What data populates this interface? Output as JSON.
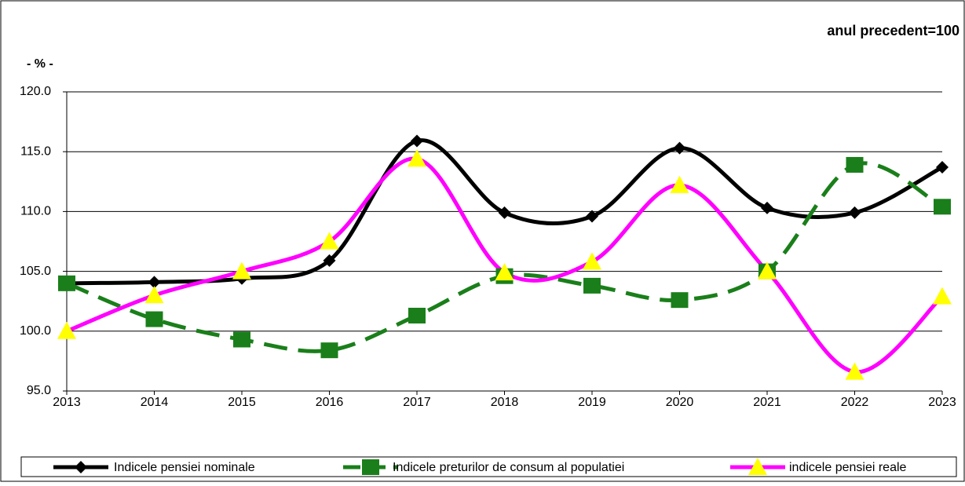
{
  "chart_data": {
    "type": "line",
    "annotation": "anul precedent=100",
    "y_label": "- % -",
    "categories": [
      "2013",
      "2014",
      "2015",
      "2016",
      "2017",
      "2018",
      "2019",
      "2020",
      "2021",
      "2022",
      "2023"
    ],
    "series": [
      {
        "name": "Indicele pensiei nominale",
        "color": "#000000",
        "marker": "diamond",
        "dash": false,
        "values": [
          104.0,
          104.1,
          104.4,
          105.9,
          115.9,
          109.9,
          109.6,
          115.3,
          110.3,
          109.9,
          113.7
        ]
      },
      {
        "name": "Indicele preturilor de consum al populatiei",
        "color": "#1a7f1a",
        "marker": "square",
        "dash": true,
        "values": [
          104.0,
          101.0,
          99.3,
          98.4,
          101.3,
          104.6,
          103.8,
          102.6,
          105.0,
          113.9,
          110.4
        ]
      },
      {
        "name": "indicele pensiei reale",
        "color": "#ff00ff",
        "marker": "triangle",
        "dash": false,
        "values": [
          100.0,
          103.0,
          105.0,
          107.5,
          114.4,
          104.9,
          105.8,
          112.2,
          105.0,
          96.6,
          102.9
        ]
      }
    ],
    "ylim": [
      95,
      120
    ],
    "yticks": [
      {
        "value": 95,
        "label": "95.0"
      },
      {
        "value": 100,
        "label": "100.0"
      },
      {
        "value": 105,
        "label": "105.0"
      },
      {
        "value": 110,
        "label": "110.0"
      },
      {
        "value": 115,
        "label": "115.0"
      },
      {
        "value": 120,
        "label": "120.0"
      }
    ],
    "grid": true,
    "smooth": true,
    "legend": "bottom"
  }
}
